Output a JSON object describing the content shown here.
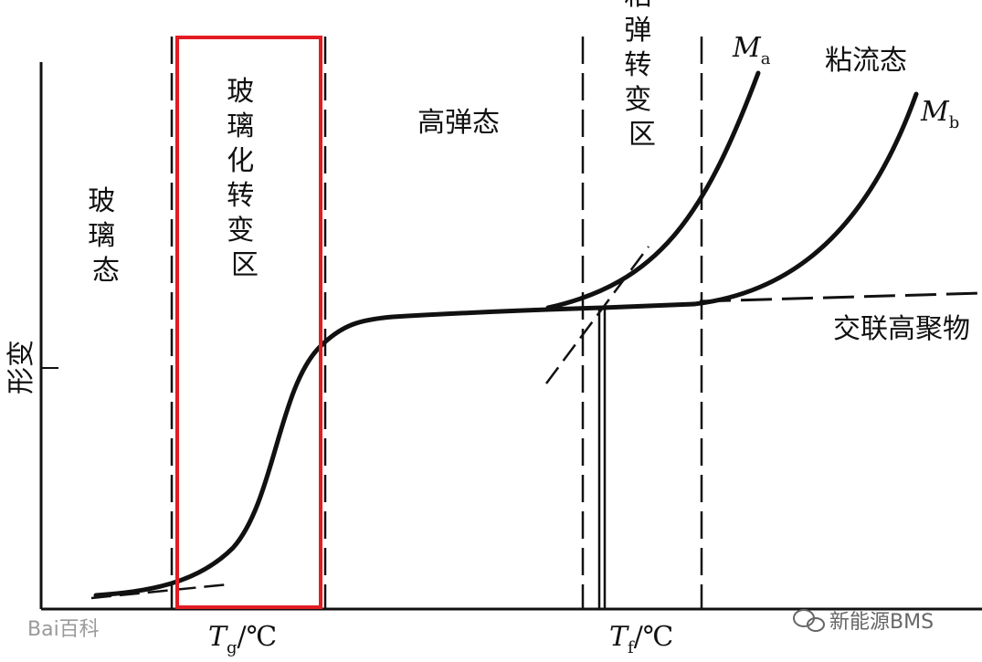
{
  "chart_data": {
    "type": "line",
    "ylabel": "形变",
    "regions": [
      {
        "id": "glass",
        "lines": [
          "玻",
          "璃",
          "态"
        ]
      },
      {
        "id": "glass-transition",
        "lines": [
          "玻",
          "璃",
          "化",
          "转",
          "变",
          "区"
        ],
        "highlight_color": "#e31b23"
      },
      {
        "id": "rubbery",
        "lines": [
          "高弹态"
        ]
      },
      {
        "id": "viscoelastic-transition",
        "lines": [
          "粘",
          "弹",
          "转",
          "变",
          "区"
        ]
      },
      {
        "id": "viscous-flow",
        "lines": [
          "粘流态"
        ]
      }
    ],
    "x_labels": {
      "tg": {
        "main": "T",
        "sub": "g",
        "unit": "/℃"
      },
      "tf": {
        "main": "T",
        "sub": "f",
        "unit": "/℃"
      }
    },
    "series": [
      {
        "name": "M",
        "sub": "a"
      },
      {
        "name": "M",
        "sub": "b"
      },
      {
        "name": "交联高聚物"
      }
    ]
  },
  "watermarks": {
    "left": "Bai百科",
    "right": "新能源BMS"
  }
}
